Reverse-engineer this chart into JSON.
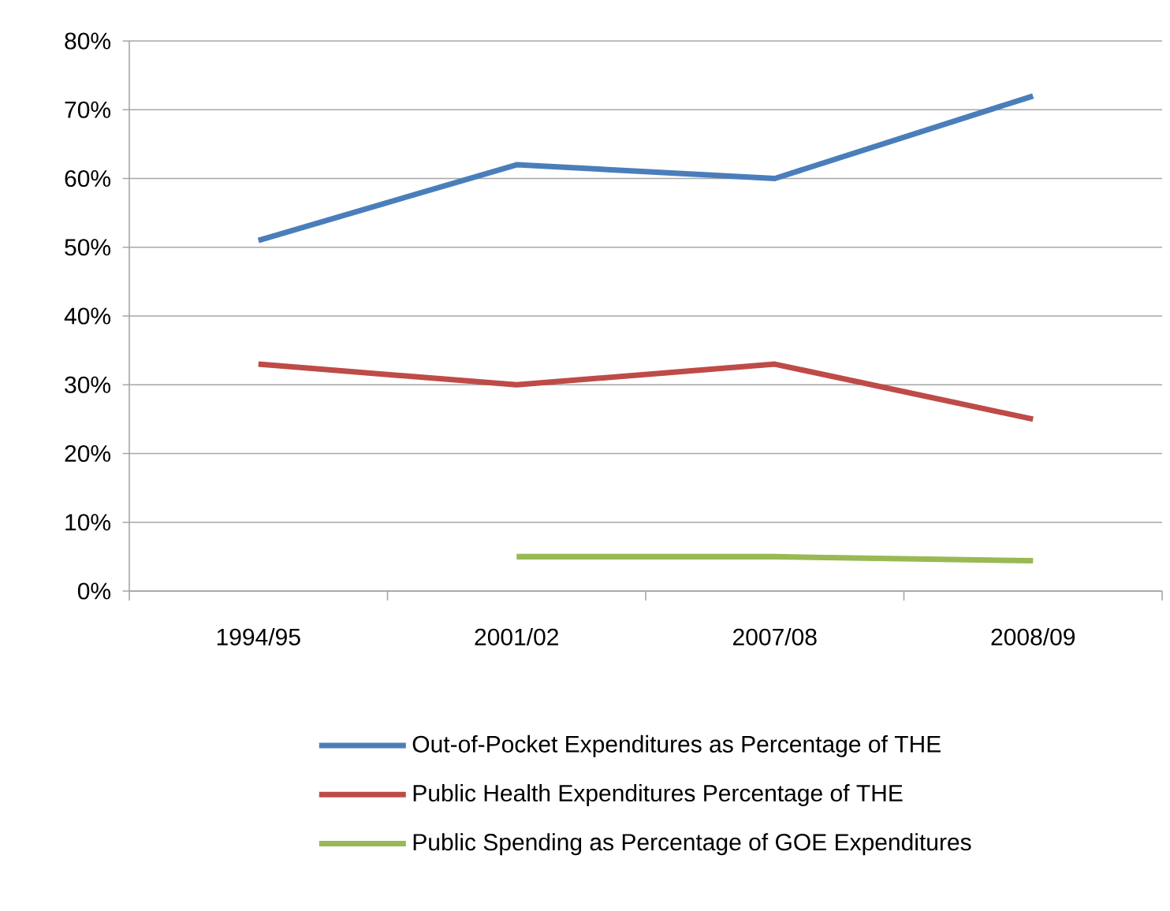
{
  "chart_data": {
    "type": "line",
    "categories": [
      "1994/95",
      "2001/02",
      "2007/08",
      "2008/09"
    ],
    "series": [
      {
        "name": "Out-of-Pocket Expenditures as Percentage of THE",
        "color": "#4a7ebb",
        "values": [
          51,
          62,
          60,
          72
        ]
      },
      {
        "name": "Public Health Expenditures Percentage of THE",
        "color": "#be4b48",
        "values": [
          33,
          30,
          33,
          25
        ]
      },
      {
        "name": "Public Spending as Percentage of GOE Expenditures",
        "color": "#98b954",
        "values": [
          null,
          5,
          5,
          4.4
        ]
      }
    ],
    "ylim": [
      0,
      80
    ],
    "yticks": [
      {
        "value": 0,
        "label": "0%"
      },
      {
        "value": 10,
        "label": "10%"
      },
      {
        "value": 20,
        "label": "20%"
      },
      {
        "value": 30,
        "label": "30%"
      },
      {
        "value": 40,
        "label": "40%"
      },
      {
        "value": 50,
        "label": "50%"
      },
      {
        "value": 60,
        "label": "60%"
      },
      {
        "value": 70,
        "label": "70%"
      },
      {
        "value": 80,
        "label": "80%"
      }
    ],
    "grid": "y",
    "legend": "bottom",
    "marker": "none",
    "line_style": "solid"
  }
}
